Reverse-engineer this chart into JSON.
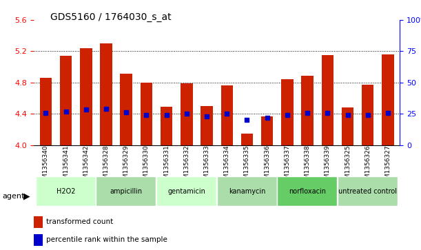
{
  "title": "GDS5160 / 1764030_s_at",
  "samples": [
    "GSM1356340",
    "GSM1356341",
    "GSM1356342",
    "GSM1356328",
    "GSM1356329",
    "GSM1356330",
    "GSM1356331",
    "GSM1356332",
    "GSM1356333",
    "GSM1356334",
    "GSM1356335",
    "GSM1356336",
    "GSM1356337",
    "GSM1356338",
    "GSM1356339",
    "GSM1356325",
    "GSM1356326",
    "GSM1356327"
  ],
  "bar_values": [
    4.86,
    5.14,
    5.24,
    5.3,
    4.91,
    4.8,
    4.49,
    4.79,
    4.5,
    4.76,
    4.15,
    4.37,
    4.84,
    4.89,
    5.15,
    4.48,
    4.77,
    5.16
  ],
  "blue_values": [
    4.41,
    4.43,
    4.45,
    4.46,
    4.42,
    4.38,
    4.38,
    4.4,
    4.37,
    4.4,
    4.32,
    4.35,
    4.38,
    4.41,
    4.41,
    4.38,
    4.38,
    4.41
  ],
  "groups": [
    {
      "label": "H2O2",
      "start": 0,
      "end": 3,
      "color": "#ccffcc"
    },
    {
      "label": "ampicillin",
      "start": 3,
      "end": 6,
      "color": "#aaddaa"
    },
    {
      "label": "gentamicin",
      "start": 6,
      "end": 9,
      "color": "#ccffcc"
    },
    {
      "label": "kanamycin",
      "start": 9,
      "end": 12,
      "color": "#aaddaa"
    },
    {
      "label": "norfloxacin",
      "start": 12,
      "end": 15,
      "color": "#66cc66"
    },
    {
      "label": "untreated control",
      "start": 15,
      "end": 18,
      "color": "#aaddaa"
    }
  ],
  "ylim_left": [
    4.0,
    5.6
  ],
  "ylim_right": [
    0,
    100
  ],
  "yticks_left": [
    4.0,
    4.4,
    4.8,
    5.2,
    5.6
  ],
  "yticks_right": [
    0,
    25,
    50,
    75,
    100
  ],
  "bar_color": "#cc2200",
  "blue_color": "#0000cc",
  "bar_width": 0.6,
  "agent_label": "agent",
  "legend_items": [
    "transformed count",
    "percentile rank within the sample"
  ],
  "legend_colors": [
    "#cc2200",
    "#0000cc"
  ]
}
